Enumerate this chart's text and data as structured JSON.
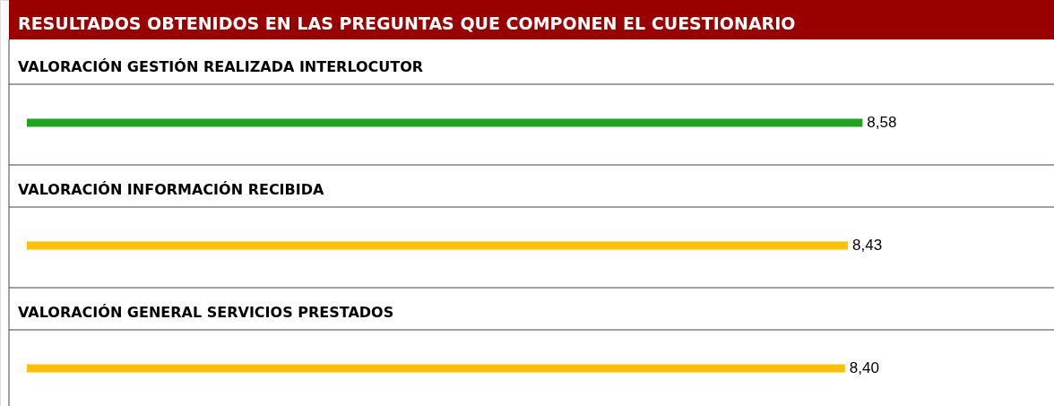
{
  "chart_data": {
    "type": "bar",
    "orientation": "horizontal",
    "title": "RESULTADOS OBTENIDOS EN LAS PREGUNTAS QUE COMPONEN EL CUESTIONARIO",
    "categories": [
      "VALORACIÓN GESTIÓN REALIZADA INTERLOCUTOR",
      "VALORACIÓN INFORMACIÓN RECIBIDA",
      "VALORACIÓN GENERAL SERVICIOS PRESTADOS"
    ],
    "values": [
      8.58,
      8.43,
      8.4
    ],
    "colors": [
      "#1ea31e",
      "#ffc000",
      "#ffc000"
    ],
    "value_labels": [
      "8,58",
      "8,43",
      "8,40"
    ],
    "xlim": [
      0,
      10.5
    ],
    "tick_labels": false
  }
}
